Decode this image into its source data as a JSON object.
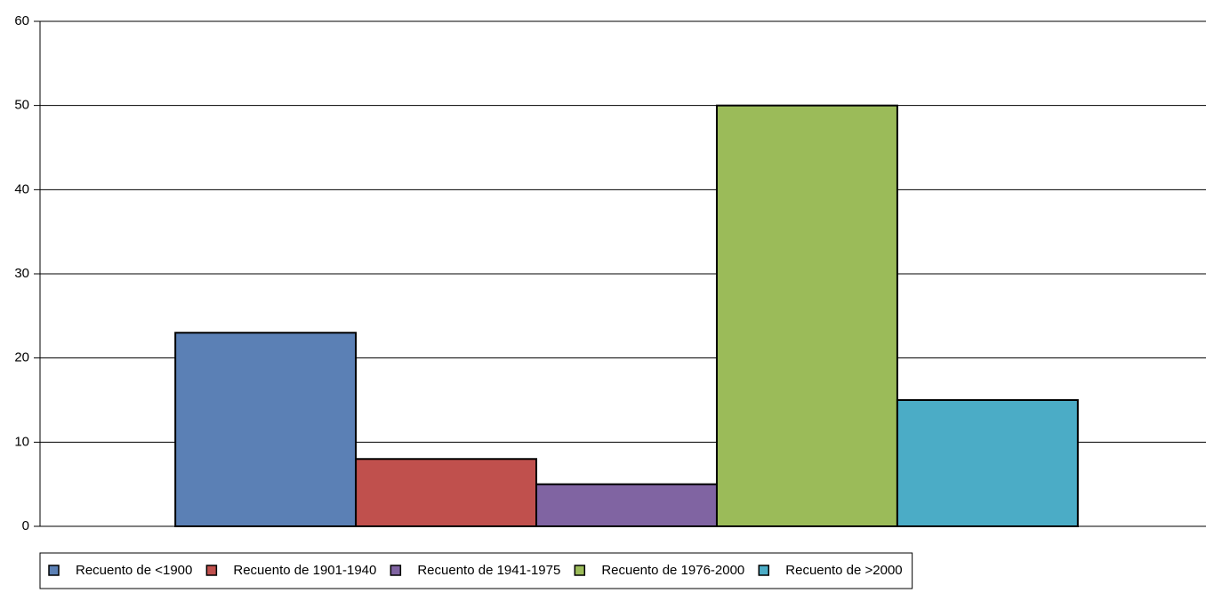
{
  "chart_data": {
    "type": "bar",
    "categories": [
      null
    ],
    "series": [
      {
        "name": "Recuento de <1900",
        "color": "#5b80b5",
        "values": [
          23
        ]
      },
      {
        "name": "Recuento de 1901-1940",
        "color": "#c0504d",
        "values": [
          8
        ]
      },
      {
        "name": "Recuento de 1941-1975",
        "color": "#8064a2",
        "values": [
          5
        ]
      },
      {
        "name": "Recuento de 1976-2000",
        "color": "#9bbb59",
        "values": [
          50
        ]
      },
      {
        "name": "Recuento de >2000",
        "color": "#4bacc6",
        "values": [
          15
        ]
      }
    ],
    "ylim": [
      0,
      60
    ],
    "yticks": [
      0,
      10,
      20,
      30,
      40,
      50,
      60
    ],
    "grid": true,
    "legend": "bottom"
  }
}
